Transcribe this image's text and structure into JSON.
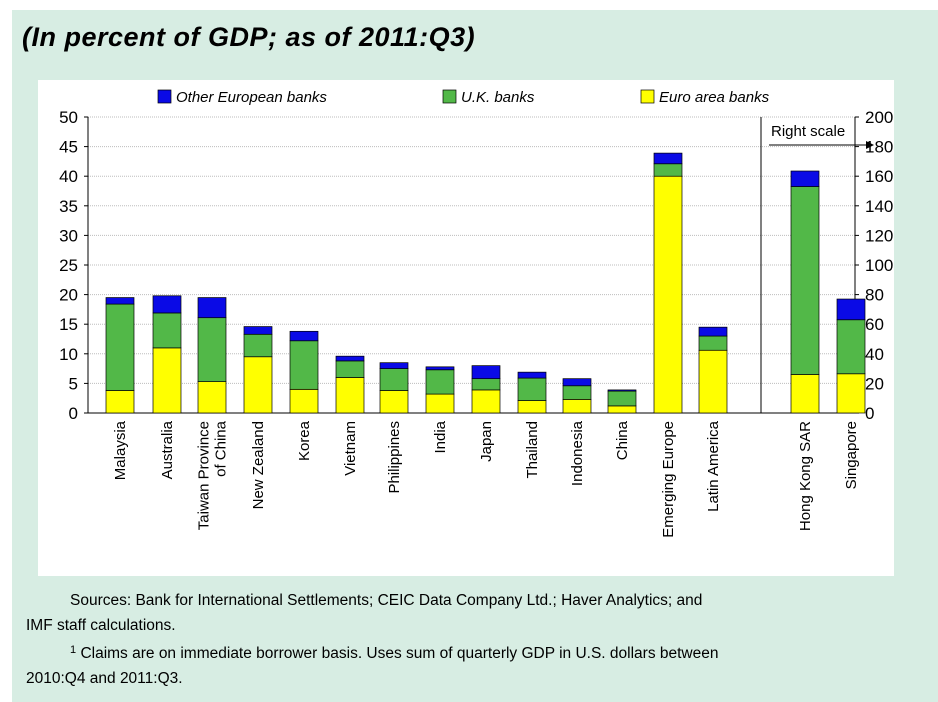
{
  "title": "(In percent of GDP; as of 2011:Q3)",
  "right_scale_label": "Right scale",
  "sources": {
    "first_line": "Sources: Bank for International Settlements; CEIC Data Company Ltd.; Haver Analytics; and",
    "second_line": "IMF staff calculations.",
    "footnote_marker": "1",
    "footnote_first_line": "Claims are on immediate borrower basis. Uses sum of quarterly GDP in U.S. dollars between",
    "footnote_second_line": "2010:Q4 and 2011:Q3."
  },
  "chart_data": {
    "type": "bar",
    "stacked": true,
    "categories": [
      [
        "Malaysia"
      ],
      [
        "Australia"
      ],
      [
        "Taiwan Province",
        "of China"
      ],
      [
        "New Zealand"
      ],
      [
        "Korea"
      ],
      [
        "Vietnam"
      ],
      [
        "Philippines"
      ],
      [
        "India"
      ],
      [
        "Japan"
      ],
      [
        "Thailand"
      ],
      [
        "Indonesia"
      ],
      [
        "China"
      ],
      [
        "Emerging Europe"
      ],
      [
        "Latin America"
      ],
      [
        "Hong Kong SAR"
      ],
      [
        "Singapore"
      ]
    ],
    "series": [
      {
        "name": "Euro area banks",
        "color": "#ffff00",
        "values": [
          3.8,
          11.0,
          5.3,
          9.5,
          4.0,
          6.0,
          3.8,
          3.2,
          3.9,
          2.1,
          2.3,
          1.2,
          40.0,
          10.6,
          26,
          26.5
        ]
      },
      {
        "name": "U.K. banks",
        "color": "#52b848",
        "values": [
          14.6,
          5.9,
          10.8,
          3.8,
          8.2,
          2.8,
          3.7,
          4.1,
          1.9,
          3.8,
          2.3,
          2.5,
          2.1,
          2.4,
          127,
          36.5
        ]
      },
      {
        "name": "Other European banks",
        "color": "#0a0ae6",
        "values": [
          1.1,
          2.9,
          3.4,
          1.3,
          1.6,
          0.8,
          1.0,
          0.5,
          2.2,
          1.0,
          1.2,
          0.2,
          1.8,
          1.5,
          10.5,
          14
        ]
      }
    ],
    "right_scale_categories": [
      "Hong Kong SAR",
      "Singapore"
    ],
    "y_left": {
      "min": 0,
      "max": 50,
      "ticks": [
        0,
        5,
        10,
        15,
        20,
        25,
        30,
        35,
        40,
        45,
        50
      ]
    },
    "y_right": {
      "min": 0,
      "max": 200,
      "ticks": [
        0,
        20,
        40,
        60,
        80,
        100,
        120,
        140,
        160,
        180,
        200
      ]
    },
    "legend_order": [
      "Other European banks",
      "U.K. banks",
      "Euro area banks"
    ],
    "legend_position": "top",
    "grid": true
  }
}
